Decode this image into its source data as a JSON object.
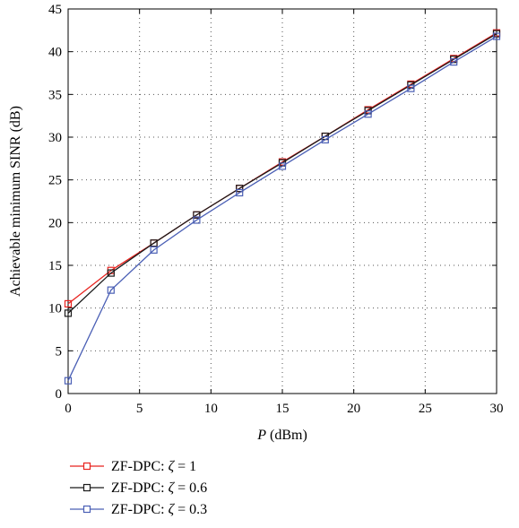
{
  "chart_data": {
    "type": "line",
    "xlabel": {
      "italic": "P",
      "rest": " (dBm)"
    },
    "ylabel": "Achievable minimum SINR (dB)",
    "xlim": [
      0,
      30
    ],
    "ylim": [
      0,
      45
    ],
    "xticks": [
      0,
      5,
      10,
      15,
      20,
      25,
      30
    ],
    "yticks": [
      0,
      5,
      10,
      15,
      20,
      25,
      30,
      35,
      40,
      45
    ],
    "grid": true,
    "grid_style": "dotted",
    "legend_position": "below",
    "x": [
      0,
      3,
      6,
      9,
      12,
      15,
      18,
      21,
      24,
      27,
      30
    ],
    "series": [
      {
        "name": "ZF-DPC: ζ = 1",
        "legend_prefix": "ZF-DPC: ",
        "legend_symbol": "ζ",
        "legend_suffix": " = 1",
        "color": "#e8231f",
        "marker": "square",
        "values": [
          10.5,
          14.4,
          17.6,
          20.9,
          24.0,
          27.1,
          30.1,
          33.2,
          36.2,
          39.2,
          42.2
        ]
      },
      {
        "name": "ZF-DPC: ζ = 0.6",
        "legend_prefix": "ZF-DPC: ",
        "legend_symbol": "ζ",
        "legend_suffix": " = 0.6",
        "color": "#1a1a1a",
        "marker": "square",
        "values": [
          9.4,
          14.1,
          17.6,
          20.9,
          24.0,
          27.0,
          30.1,
          33.1,
          36.1,
          39.1,
          42.1
        ]
      },
      {
        "name": "ZF-DPC: ζ = 0.3",
        "legend_prefix": "ZF-DPC: ",
        "legend_symbol": "ζ",
        "legend_suffix": " = 0.3",
        "color": "#4a5fb5",
        "marker": "square",
        "values": [
          1.5,
          12.1,
          16.8,
          20.3,
          23.5,
          26.6,
          29.7,
          32.7,
          35.7,
          38.8,
          41.8
        ]
      }
    ]
  }
}
